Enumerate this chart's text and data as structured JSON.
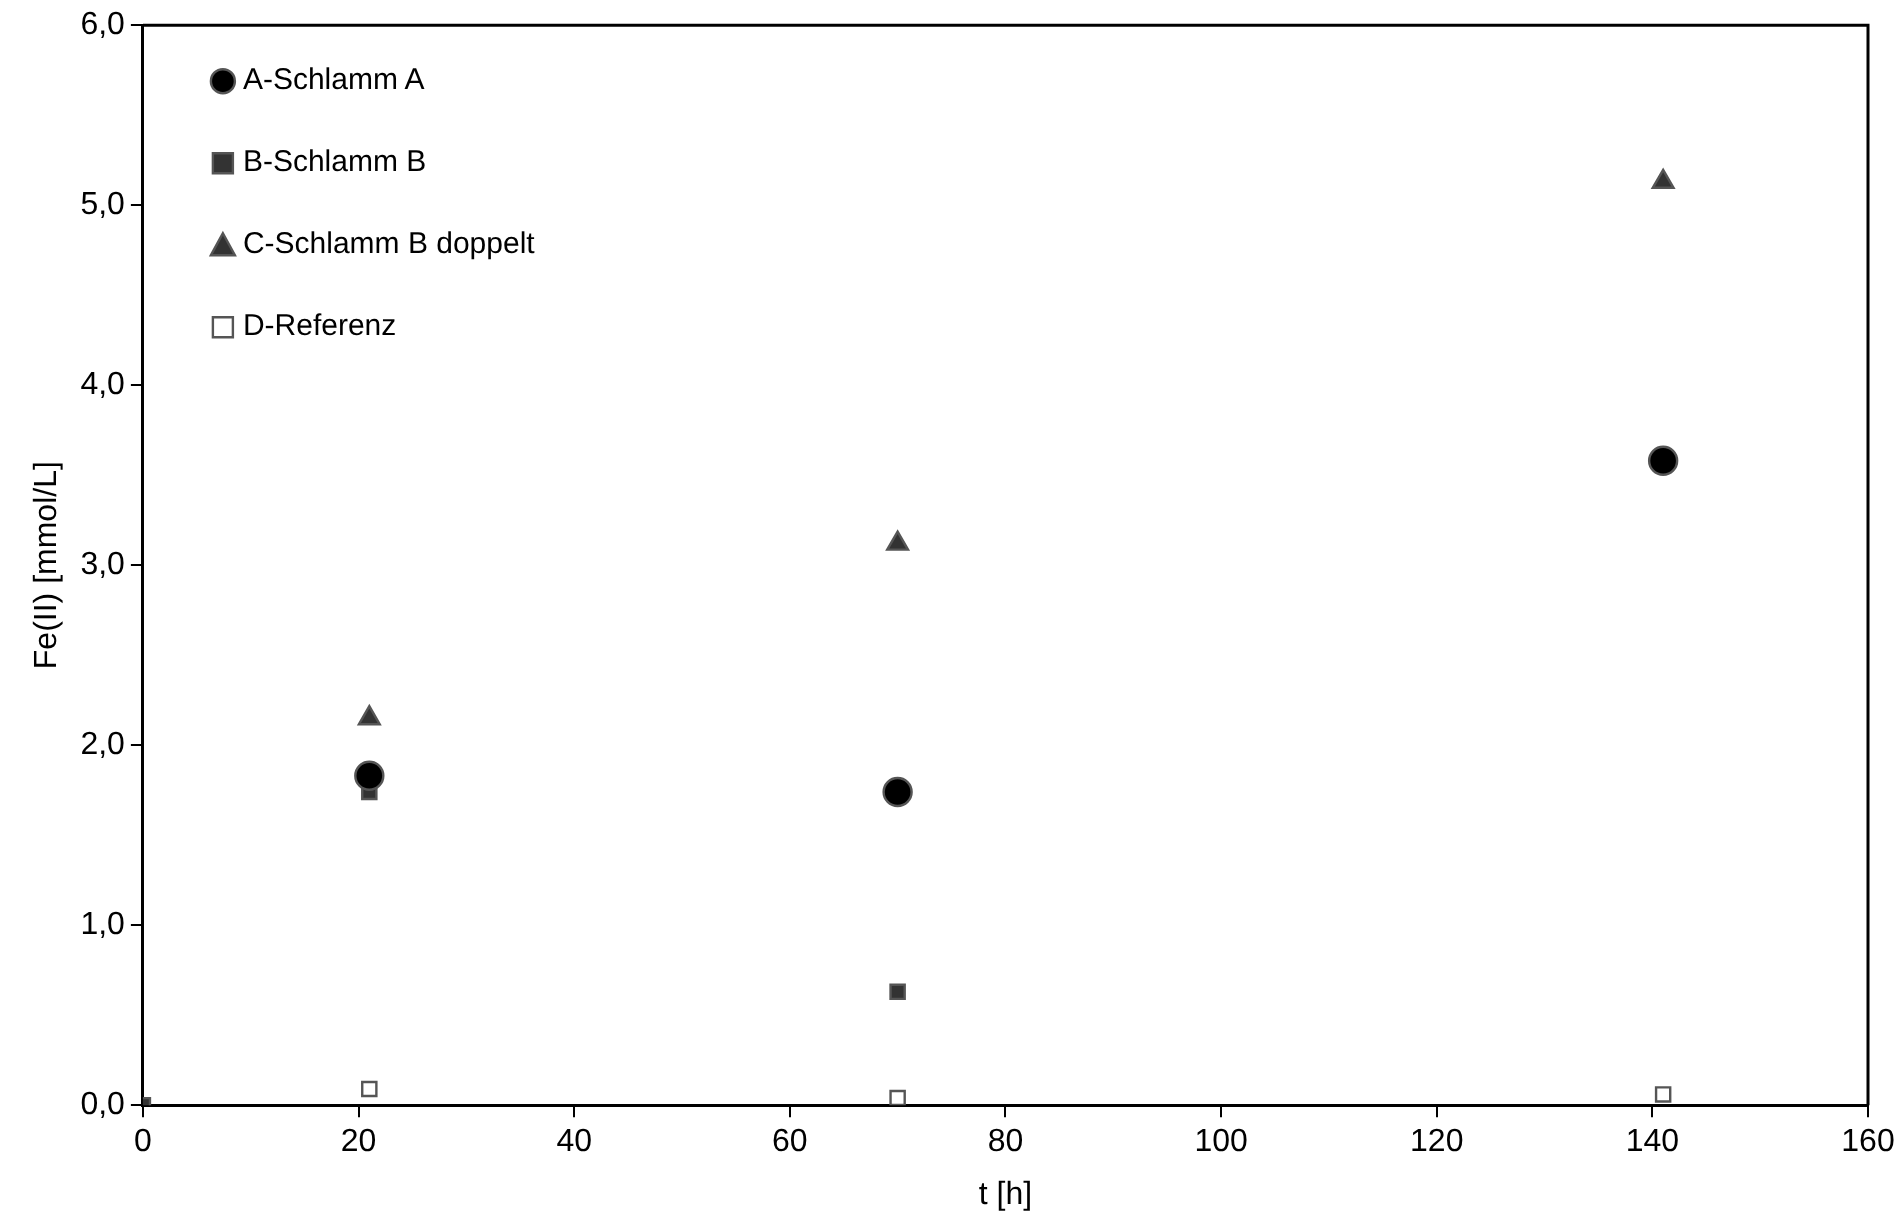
{
  "chart_data": {
    "type": "scatter",
    "xlabel": "t [h]",
    "ylabel": "Fe(II) [mmol/L]",
    "x": [
      0,
      21,
      70,
      141
    ],
    "series": [
      {
        "name": "A-Schlamm A",
        "color": "#000000",
        "marker": "circle",
        "values": [
          null,
          1.83,
          1.74,
          3.58
        ]
      },
      {
        "name": "B-Schlamm B",
        "color": "#333333",
        "marker": "square",
        "values": [
          0,
          1.74,
          0.63,
          null
        ]
      },
      {
        "name": "C-Schlamm B doppelt",
        "color": "#333333",
        "marker": "triangle",
        "values": [
          null,
          2.15,
          3.12,
          5.13
        ]
      },
      {
        "name": "D-Referenz",
        "color": "#ffffff",
        "marker": "square",
        "values": [
          null,
          0.09,
          0.04,
          0.06
        ]
      }
    ],
    "xlim": [
      0,
      160
    ],
    "xticks": [
      0,
      20,
      40,
      60,
      80,
      100,
      120,
      140,
      160
    ],
    "ylim": [
      0,
      6
    ],
    "yticks": [
      {
        "value": 0,
        "label": "0,0"
      },
      {
        "value": 1,
        "label": "1,0"
      },
      {
        "value": 2,
        "label": "2,0"
      },
      {
        "value": 3,
        "label": "3,0"
      },
      {
        "value": 4,
        "label": "4,0"
      },
      {
        "value": 5,
        "label": "5,0"
      },
      {
        "value": 6,
        "label": "6,0"
      }
    ],
    "grid": false,
    "legend": "top left"
  }
}
